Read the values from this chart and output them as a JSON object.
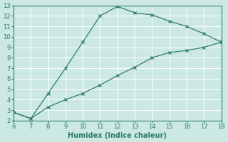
{
  "xlabel": "Humidex (Indice chaleur)",
  "line_color": "#2e7d6e",
  "series1_x": [
    6,
    7,
    8,
    9,
    10,
    11,
    12,
    13,
    14,
    15,
    16,
    17,
    18
  ],
  "series1_y": [
    2.8,
    2.2,
    4.6,
    7.0,
    9.5,
    12.0,
    12.9,
    12.3,
    12.1,
    11.5,
    11.0,
    10.3,
    9.5
  ],
  "series2_x": [
    6,
    7,
    8,
    9,
    10,
    11,
    12,
    13,
    14,
    15,
    16,
    17,
    18
  ],
  "series2_y": [
    2.8,
    2.2,
    3.3,
    4.0,
    4.6,
    5.4,
    6.3,
    7.1,
    8.0,
    8.5,
    8.7,
    9.0,
    9.5
  ],
  "marker": "x",
  "marker_size": 3,
  "linewidth": 0.9,
  "xlim": [
    6,
    18
  ],
  "ylim": [
    2,
    13
  ],
  "xticks": [
    6,
    7,
    8,
    9,
    10,
    11,
    12,
    13,
    14,
    15,
    16,
    17,
    18
  ],
  "yticks": [
    2,
    3,
    4,
    5,
    6,
    7,
    8,
    9,
    10,
    11,
    12,
    13
  ],
  "bg_color": "#cce8e2",
  "grid_color": "#ffffff",
  "tick_fontsize": 6,
  "label_fontsize": 7
}
